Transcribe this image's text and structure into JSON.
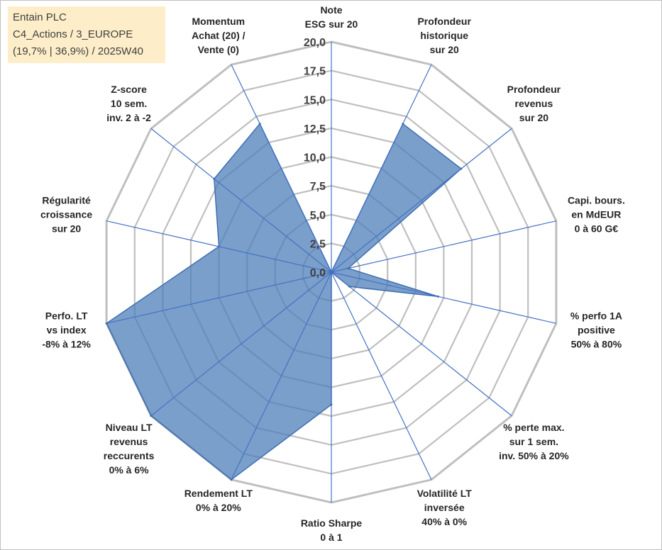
{
  "info": {
    "company": "Entain PLC",
    "category": "C4_Actions / 3_EUROPE",
    "stats": "(19,7% | 36,9%) / 2025W40"
  },
  "chart_data": {
    "type": "radar",
    "title": "",
    "rmax": 20,
    "tick_labels": [
      "0,0",
      "2,5",
      "5,0",
      "7,5",
      "10,0",
      "12,5",
      "15,0",
      "17,5",
      "20,0"
    ],
    "axes": [
      {
        "lines": [
          "Note",
          "ESG sur 20"
        ],
        "value": 0.0
      },
      {
        "lines": [
          "Profondeur",
          "historique",
          "sur 20"
        ],
        "value": 14.3
      },
      {
        "lines": [
          "Profondeur",
          "revenus",
          "sur 20"
        ],
        "value": 14.4
      },
      {
        "lines": [
          "Capi. bours.",
          "en MdEUR",
          "0 à 60 G€"
        ],
        "value": 1.5
      },
      {
        "lines": [
          "% perfo 1A",
          "positive",
          "50% à 80%"
        ],
        "value": 9.5
      },
      {
        "lines": [
          "% perte max.",
          "sur 1 sem.",
          "inv. 50% à 20%"
        ],
        "value": 2.0
      },
      {
        "lines": [
          "Volatilité LT",
          "inversée",
          "40% à 0%"
        ],
        "value": 0.0
      },
      {
        "lines": [
          "Ratio Sharpe",
          "0 à 1"
        ],
        "value": 11.5
      },
      {
        "lines": [
          "Rendement LT",
          "0% à 20%"
        ],
        "value": 20.0
      },
      {
        "lines": [
          "Niveau LT",
          "revenus",
          "reccurents",
          "0% à 6%"
        ],
        "value": 20.0
      },
      {
        "lines": [
          "Perfo. LT",
          "vs index",
          "-8% à 12%"
        ],
        "value": 20.0
      },
      {
        "lines": [
          "Régularité",
          "croissance",
          "sur 20"
        ],
        "value": 10.0
      },
      {
        "lines": [
          "Z-score",
          "10 sem.",
          "inv. 2 à -2"
        ],
        "value": 13.0
      },
      {
        "lines": [
          "Momentum",
          "Achat (20) /",
          "Vente (0)"
        ],
        "value": 14.3
      }
    ],
    "colors": {
      "fill": "#4f7fb9",
      "line": "#3f6fb0",
      "grid": "#bfbfbf",
      "spoke": "#4472c4"
    }
  }
}
